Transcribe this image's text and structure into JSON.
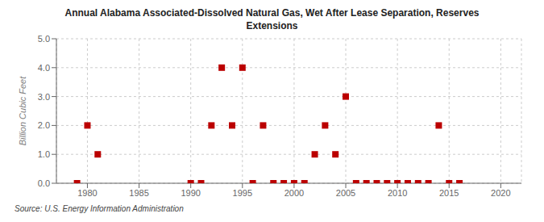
{
  "chart_data": {
    "type": "scatter",
    "title": "Annual Alabama Associated-Dissolved Natural Gas, Wet After Lease Separation, Reserves\nExtensions",
    "ylabel": "Billion Cubic Feet",
    "annotation": "Source: U.S. Energy Information Administration",
    "x": [
      1979,
      1980,
      1981,
      1990,
      1991,
      1992,
      1993,
      1994,
      1995,
      1996,
      1997,
      1998,
      1999,
      2000,
      2001,
      2002,
      2003,
      2004,
      2005,
      2006,
      2007,
      2008,
      2009,
      2010,
      2011,
      2012,
      2013,
      2014,
      2015,
      2016
    ],
    "values": [
      0.0,
      2.0,
      1.0,
      0.0,
      0.0,
      2.0,
      4.0,
      2.0,
      4.0,
      0.0,
      2.0,
      0.0,
      0.0,
      0.0,
      0.0,
      1.0,
      2.0,
      1.0,
      3.0,
      0.0,
      0.0,
      0.0,
      0.0,
      0.0,
      0.0,
      0.0,
      0.0,
      2.0,
      0.0,
      0.0
    ],
    "xlim": [
      1977,
      2022
    ],
    "ylim": [
      0.0,
      5.0
    ],
    "xticks": [
      1980,
      1985,
      1990,
      1995,
      2000,
      2005,
      2010,
      2015,
      2020
    ],
    "yticks": [
      {
        "value": 0.0,
        "label": "0.0"
      },
      {
        "value": 1.0,
        "label": "1.0"
      },
      {
        "value": 2.0,
        "label": "2.0"
      },
      {
        "value": 3.0,
        "label": "3.0"
      },
      {
        "value": 4.0,
        "label": "4.0"
      },
      {
        "value": 5.0,
        "label": "5.0"
      }
    ],
    "grid": true,
    "color": "#bb0000",
    "marker": "square"
  }
}
